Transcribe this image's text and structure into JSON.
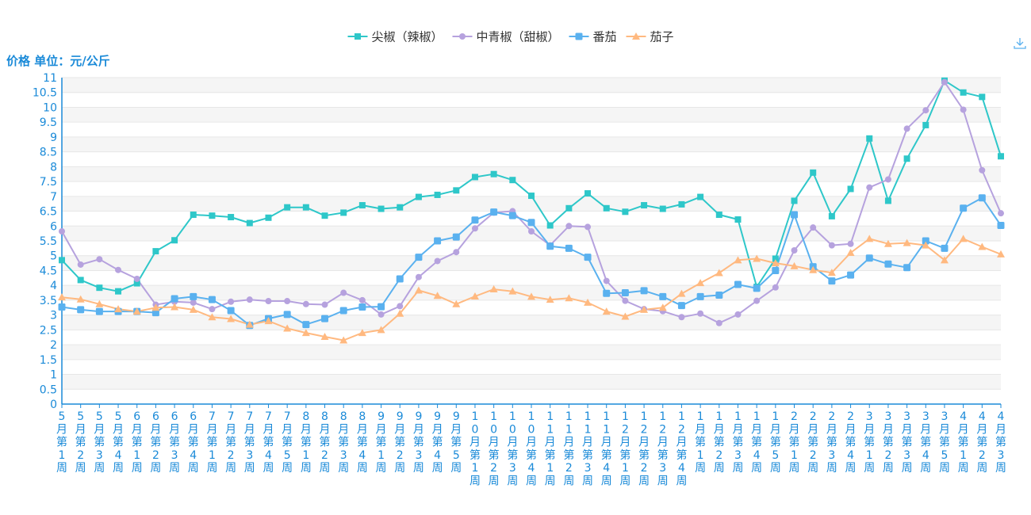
{
  "colors": {
    "axis": "#1a8ad8",
    "grid_band": "#f5f5f5",
    "grid_line": "#e6e6e6"
  },
  "toolbar": {
    "download_icon": "download-icon"
  },
  "chart_data": {
    "type": "line",
    "ylabel": "价格 单位：元/公斤",
    "ylim": [
      0,
      11
    ],
    "yticks": [
      "0",
      "0.5",
      "1",
      "1.5",
      "2",
      "2.5",
      "3",
      "3.5",
      "4",
      "4.5",
      "5",
      "5.5",
      "6",
      "6.5",
      "7",
      "7.5",
      "8",
      "8.5",
      "9",
      "9.5",
      "10",
      "10.5",
      "11"
    ],
    "legend_position": "top-center",
    "categories": [
      "5月第1周",
      "5月第2周",
      "5月第3周",
      "5月第4周",
      "6月第1周",
      "6月第2周",
      "6月第3周",
      "6月第4周",
      "7月第1周",
      "7月第2周",
      "7月第3周",
      "7月第4周",
      "7月第5周",
      "8月第1周",
      "8月第2周",
      "8月第3周",
      "8月第4周",
      "9月第1周",
      "9月第2周",
      "9月第3周",
      "9月第4周",
      "9月第5周",
      "10月第1周",
      "10月第2周",
      "10月第3周",
      "10月第4周",
      "11月第1周",
      "11月第2周",
      "11月第3周",
      "11月第4周",
      "12月第1周",
      "12月第2周",
      "12月第3周",
      "12月第4周",
      "1月第1周",
      "1月第2周",
      "1月第3周",
      "1月第4周",
      "1月第5周",
      "2月第1周",
      "2月第2周",
      "2月第3周",
      "2月第4周",
      "3月第1周",
      "3月第2周",
      "3月第3周",
      "3月第4周",
      "3月第5周",
      "4月第1周",
      "4月第2周",
      "4月第3周"
    ],
    "series": [
      {
        "name": "尖椒（辣椒）",
        "color": "#2ec7c9",
        "marker": "square",
        "values": [
          4.85,
          4.18,
          3.92,
          3.8,
          4.07,
          5.15,
          5.52,
          6.38,
          6.35,
          6.3,
          6.1,
          6.28,
          6.63,
          6.63,
          6.35,
          6.45,
          6.7,
          6.58,
          6.63,
          6.98,
          7.05,
          7.2,
          7.65,
          7.75,
          7.55,
          7.02,
          6.02,
          6.6,
          7.1,
          6.6,
          6.48,
          6.7,
          6.58,
          6.73,
          6.98,
          6.38,
          6.22,
          3.95,
          4.9,
          6.85,
          7.8,
          6.33,
          7.25,
          8.95,
          6.85,
          8.27,
          9.4,
          10.9,
          10.5,
          10.35,
          8.35
        ]
      },
      {
        "name": "中青椒（甜椒）",
        "color": "#b6a2de",
        "marker": "circle",
        "values": [
          5.82,
          4.7,
          4.88,
          4.52,
          4.22,
          3.35,
          3.45,
          3.42,
          3.2,
          3.45,
          3.52,
          3.47,
          3.47,
          3.37,
          3.35,
          3.75,
          3.5,
          3.02,
          3.3,
          4.28,
          4.82,
          5.12,
          5.92,
          6.45,
          6.5,
          5.82,
          5.35,
          6.0,
          5.97,
          4.15,
          3.48,
          3.2,
          3.13,
          2.93,
          3.05,
          2.73,
          3.02,
          3.48,
          3.93,
          5.18,
          5.95,
          5.35,
          5.4,
          7.3,
          7.57,
          9.28,
          9.9,
          10.85,
          9.92,
          7.88,
          6.43
        ]
      },
      {
        "name": "番茄",
        "color": "#5ab1ef",
        "marker": "roundsquare",
        "values": [
          3.27,
          3.18,
          3.12,
          3.12,
          3.12,
          3.08,
          3.55,
          3.62,
          3.52,
          3.15,
          2.65,
          2.88,
          3.02,
          2.68,
          2.88,
          3.15,
          3.27,
          3.28,
          4.22,
          4.95,
          5.5,
          5.63,
          6.2,
          6.47,
          6.35,
          6.12,
          5.32,
          5.25,
          4.95,
          3.73,
          3.75,
          3.82,
          3.62,
          3.32,
          3.62,
          3.67,
          4.03,
          3.9,
          4.5,
          6.38,
          4.63,
          4.15,
          4.35,
          4.92,
          4.72,
          4.6,
          5.5,
          5.25,
          6.6,
          6.95,
          6.02
        ]
      },
      {
        "name": "茄子",
        "color": "#ffb980",
        "marker": "triangle",
        "values": [
          3.6,
          3.53,
          3.37,
          3.2,
          3.12,
          3.25,
          3.27,
          3.18,
          2.93,
          2.87,
          2.68,
          2.8,
          2.55,
          2.4,
          2.27,
          2.15,
          2.4,
          2.5,
          3.05,
          3.83,
          3.65,
          3.37,
          3.63,
          3.87,
          3.8,
          3.62,
          3.52,
          3.57,
          3.42,
          3.12,
          2.95,
          3.18,
          3.25,
          3.72,
          4.08,
          4.42,
          4.85,
          4.9,
          4.75,
          4.65,
          4.52,
          4.43,
          5.1,
          5.57,
          5.4,
          5.43,
          5.35,
          4.85,
          5.57,
          5.3,
          5.05
        ]
      }
    ]
  }
}
